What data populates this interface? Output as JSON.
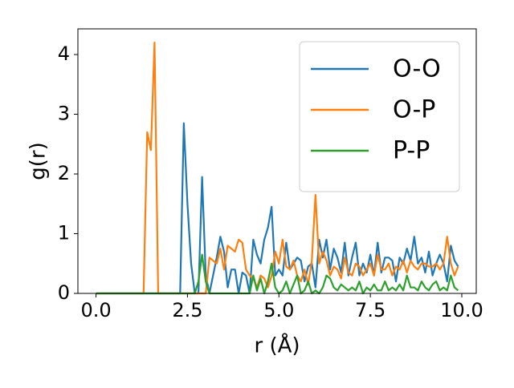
{
  "chart_data": {
    "type": "line",
    "xlabel": "r (Å)",
    "ylabel": "g(r)",
    "x": [
      0,
      0.1,
      0.2,
      0.3,
      0.4,
      0.5,
      0.6,
      0.7,
      0.8,
      0.9,
      1,
      1.1,
      1.2,
      1.3,
      1.4,
      1.5,
      1.6,
      1.7,
      1.8,
      1.9,
      2,
      2.1,
      2.2,
      2.3,
      2.4,
      2.5,
      2.6,
      2.7,
      2.8,
      2.9,
      3,
      3.1,
      3.2,
      3.3,
      3.4,
      3.5,
      3.6,
      3.7,
      3.8,
      3.9,
      4,
      4.1,
      4.2,
      4.3,
      4.4,
      4.5,
      4.6,
      4.7,
      4.8,
      4.9,
      5,
      5.1,
      5.2,
      5.3,
      5.4,
      5.5,
      5.6,
      5.7,
      5.8,
      5.9,
      6,
      6.1,
      6.2,
      6.3,
      6.4,
      6.5,
      6.6,
      6.7,
      6.8,
      6.9,
      7,
      7.1,
      7.2,
      7.3,
      7.4,
      7.5,
      7.6,
      7.7,
      7.8,
      7.9,
      8,
      8.1,
      8.2,
      8.3,
      8.4,
      8.5,
      8.6,
      8.7,
      8.8,
      8.9,
      9,
      9.1,
      9.2,
      9.3,
      9.4,
      9.5,
      9.6,
      9.7,
      9.8,
      9.9
    ],
    "series": [
      {
        "name": "O-O",
        "color": "#1f77b4",
        "values": [
          0,
          0,
          0,
          0,
          0,
          0,
          0,
          0,
          0,
          0,
          0,
          0,
          0,
          0,
          0,
          0,
          0,
          0,
          0,
          0,
          0,
          0,
          0,
          0,
          2.85,
          1.5,
          0.5,
          0,
          0,
          1.95,
          0.3,
          0,
          0.3,
          0.6,
          0.95,
          0.7,
          0.1,
          0.4,
          0.4,
          0,
          0.35,
          0.3,
          0,
          0.9,
          0.65,
          0.5,
          0.9,
          1.1,
          1.45,
          0.3,
          0.4,
          0.3,
          0.85,
          0.4,
          0.5,
          0.6,
          0.55,
          0.2,
          0.45,
          0.5,
          0.1,
          0.9,
          0.6,
          0.9,
          0.4,
          0.75,
          0.6,
          0.35,
          0.85,
          0.3,
          0.6,
          0.85,
          0.3,
          0.5,
          0.35,
          0.65,
          0.3,
          0.85,
          0.35,
          0.6,
          0.6,
          0.55,
          0.2,
          0.6,
          0.5,
          0.75,
          0.55,
          0.95,
          0.5,
          0.6,
          0.35,
          0.7,
          0.3,
          0.5,
          0.65,
          0.5,
          0.2,
          0.8,
          0.55,
          0.45
        ]
      },
      {
        "name": "O-P",
        "color": "#ff7f0e",
        "values": [
          0,
          0,
          0,
          0,
          0,
          0,
          0,
          0,
          0,
          0,
          0,
          0,
          0,
          0,
          2.7,
          2.4,
          4.2,
          0,
          0,
          0,
          0,
          0,
          0,
          0,
          0,
          0,
          0,
          0,
          0,
          0,
          0,
          0.6,
          0.55,
          0.5,
          0.75,
          0.4,
          0.8,
          0.75,
          0.7,
          0.9,
          0.85,
          0.4,
          0.3,
          0.25,
          0.1,
          0.3,
          0.25,
          0.1,
          0.3,
          0.7,
          0.5,
          0.9,
          0.45,
          0.4,
          0.55,
          0.3,
          0.2,
          0.4,
          0.15,
          0.55,
          1.65,
          0.5,
          0.7,
          0.55,
          0.3,
          0.45,
          0.4,
          0.25,
          0.6,
          0.35,
          0.3,
          0.5,
          0.45,
          0.3,
          0.4,
          0.5,
          0.3,
          0.65,
          0.4,
          0.4,
          0.5,
          0.3,
          0.45,
          0.4,
          0.55,
          0.35,
          0.55,
          0.45,
          0.4,
          0.5,
          0.5,
          0.45,
          0.45,
          0.5,
          0.4,
          0.5,
          0.95,
          0.5,
          0.3,
          0.45
        ]
      },
      {
        "name": "P-P",
        "color": "#2ca02c",
        "values": [
          0,
          0,
          0,
          0,
          0,
          0,
          0,
          0,
          0,
          0,
          0,
          0,
          0,
          0,
          0,
          0,
          0,
          0,
          0,
          0,
          0,
          0,
          0,
          0,
          0,
          0,
          0,
          0,
          0.2,
          0.65,
          0.2,
          0,
          0,
          0,
          0,
          0,
          0,
          0,
          0,
          0,
          0,
          0,
          0,
          0.3,
          0.05,
          0.25,
          0,
          0.2,
          0.5,
          0.1,
          0,
          0.05,
          0.2,
          0,
          0.15,
          0.3,
          0,
          0.05,
          0.2,
          0,
          0.05,
          0,
          0.1,
          0.3,
          0.25,
          0.1,
          0.05,
          0.15,
          0.1,
          0.05,
          0.1,
          0.05,
          0.2,
          0,
          0.1,
          0.05,
          0.15,
          0.05,
          0.05,
          0.2,
          0.05,
          0.1,
          0.05,
          0.15,
          0.05,
          0.3,
          0.1,
          0.1,
          0.05,
          0.2,
          0.1,
          0.05,
          0.15,
          0.2,
          0.05,
          0.1,
          0.05,
          0.3,
          0.1,
          0.05
        ]
      }
    ],
    "xlim": [
      -0.495,
      10.395
    ],
    "ylim": [
      0,
      4.43
    ],
    "xticks": [
      {
        "value": 0,
        "label": "0.0"
      },
      {
        "value": 2.5,
        "label": "2.5"
      },
      {
        "value": 5,
        "label": "5.0"
      },
      {
        "value": 7.5,
        "label": "7.5"
      },
      {
        "value": 10,
        "label": "10.0"
      }
    ],
    "yticks": [
      0,
      1,
      2,
      3,
      4
    ],
    "grid": false,
    "legend": "upper right"
  }
}
